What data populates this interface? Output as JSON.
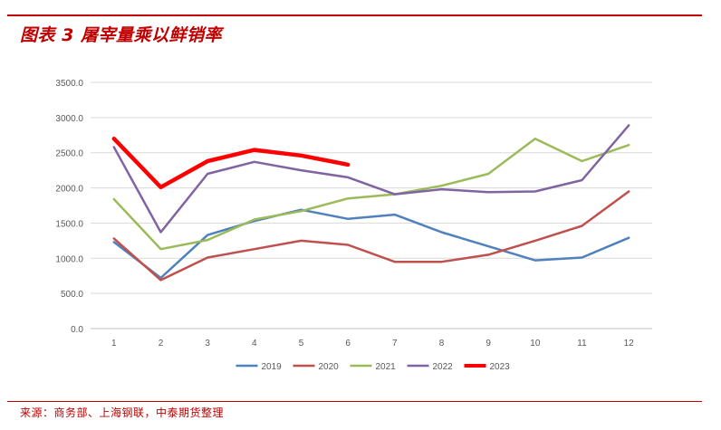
{
  "header": {
    "title": "图表 3  屠宰量乘以鲜销率"
  },
  "footer": {
    "source": "来源：商务部、上海钢联，中泰期货整理"
  },
  "chart_data": {
    "type": "line",
    "title": "",
    "xlabel": "",
    "ylabel": "",
    "ylim": [
      0,
      3500
    ],
    "yticks": [
      "0.0",
      "500.0",
      "1000.0",
      "1500.0",
      "2000.0",
      "2500.0",
      "3000.0",
      "3500.0"
    ],
    "categories": [
      "1",
      "2",
      "3",
      "4",
      "5",
      "6",
      "7",
      "8",
      "9",
      "10",
      "11",
      "12"
    ],
    "grid": true,
    "legend_position": "bottom",
    "series": [
      {
        "name": "2019",
        "color": "#4f81bd",
        "width": 2.5,
        "values": [
          1230,
          720,
          1330,
          1530,
          1690,
          1560,
          1620,
          1370,
          1170,
          970,
          1010,
          1290
        ]
      },
      {
        "name": "2020",
        "color": "#c0504d",
        "width": 2.5,
        "values": [
          1280,
          690,
          1010,
          1130,
          1250,
          1190,
          950,
          950,
          1050,
          1250,
          1460,
          1950
        ]
      },
      {
        "name": "2021",
        "color": "#9bbb59",
        "width": 2.5,
        "values": [
          1840,
          1130,
          1260,
          1550,
          1670,
          1850,
          1910,
          2030,
          2200,
          2700,
          2380,
          2610
        ]
      },
      {
        "name": "2022",
        "color": "#8064a2",
        "width": 2.5,
        "values": [
          2580,
          1370,
          2200,
          2370,
          2250,
          2150,
          1910,
          1980,
          1940,
          1950,
          2110,
          2890
        ]
      },
      {
        "name": "2023",
        "color": "#ff0000",
        "width": 4.5,
        "values": [
          2700,
          2010,
          2380,
          2540,
          2460,
          2330,
          null,
          null,
          null,
          null,
          null,
          null
        ]
      }
    ]
  }
}
